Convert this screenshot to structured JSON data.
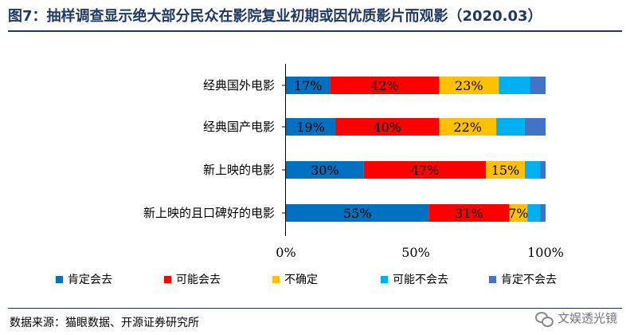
{
  "header": {
    "title": "图7：抽样调查显示绝大部分民众在影院复业初期或因优质影片而观影（2020.03）"
  },
  "footer": {
    "source": "数据来源：猫眼数据、开源证券研究所",
    "watermark": "文娱透光镜"
  },
  "chart_data": {
    "type": "bar",
    "orientation": "horizontal",
    "stacked": true,
    "percent_stacked": true,
    "categories": [
      "经典国外电影",
      "经典国产电影",
      "新上映的电影",
      "新上映的且口碑好的电影"
    ],
    "series": [
      {
        "name": "肯定会去",
        "color": "#0070c0",
        "values": [
          17,
          19,
          30,
          55
        ],
        "labels": [
          "17%",
          "19%",
          "30%",
          "55%"
        ]
      },
      {
        "name": "可能会去",
        "color": "#ff0000",
        "values": [
          42,
          40,
          47,
          31
        ],
        "labels": [
          "42%",
          "40%",
          "47%",
          "31%"
        ]
      },
      {
        "name": "不确定",
        "color": "#ffc000",
        "values": [
          23,
          22,
          15,
          7
        ],
        "labels": [
          "23%",
          "22%",
          "15%",
          "7%"
        ]
      },
      {
        "name": "可能不会去",
        "color": "#00b0f0",
        "values": [
          12,
          11,
          6,
          5
        ],
        "labels": [
          "",
          "",
          "",
          ""
        ]
      },
      {
        "name": "肯定不会去",
        "color": "#4472c4",
        "values": [
          6,
          8,
          2,
          2
        ],
        "labels": [
          "",
          "",
          "",
          ""
        ]
      }
    ],
    "xlim": [
      0,
      100
    ],
    "xticks": [
      "0%",
      "50%",
      "100%"
    ],
    "grid": false,
    "legend_position": "bottom"
  }
}
